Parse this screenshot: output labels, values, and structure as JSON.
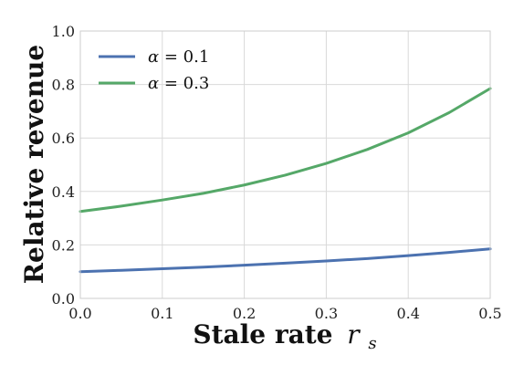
{
  "chart_data": {
    "type": "line",
    "title": "",
    "xlabel_main": "Stale rate",
    "xlabel_symbol": "r",
    "xlabel_subscript": "s",
    "ylabel": "Relative revenue",
    "xlim": [
      0.0,
      0.5
    ],
    "ylim": [
      0.0,
      1.0
    ],
    "x_ticks": [
      "0.0",
      "0.1",
      "0.2",
      "0.3",
      "0.4",
      "0.5"
    ],
    "y_ticks": [
      "0.0",
      "0.2",
      "0.4",
      "0.6",
      "0.8",
      "1.0"
    ],
    "grid": true,
    "legend_placement": "top-left",
    "series": [
      {
        "name_symbol": "α",
        "name_rest": " = 0.1",
        "color": "#4c72b0",
        "x": [
          0.0,
          0.05,
          0.1,
          0.15,
          0.2,
          0.25,
          0.3,
          0.35,
          0.4,
          0.45,
          0.5
        ],
        "y": [
          0.1,
          0.105,
          0.111,
          0.117,
          0.124,
          0.132,
          0.14,
          0.149,
          0.16,
          0.172,
          0.185
        ]
      },
      {
        "name_symbol": "α",
        "name_rest": " = 0.3",
        "color": "#55a868",
        "x": [
          0.0,
          0.05,
          0.1,
          0.15,
          0.2,
          0.25,
          0.3,
          0.35,
          0.4,
          0.45,
          0.5
        ],
        "y": [
          0.325,
          0.345,
          0.368,
          0.393,
          0.424,
          0.461,
          0.505,
          0.557,
          0.619,
          0.695,
          0.785
        ]
      }
    ]
  }
}
